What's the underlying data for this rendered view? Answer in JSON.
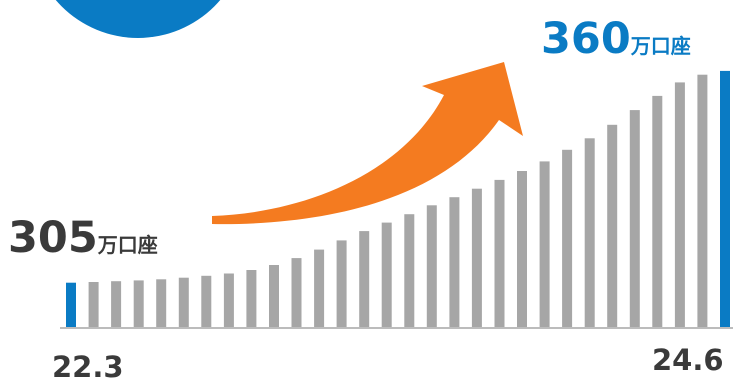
{
  "chart_data": {
    "type": "bar",
    "x_start_label": "22.3",
    "x_end_label": "24.6",
    "start_annotation": {
      "value": "305",
      "unit": "万口座"
    },
    "end_annotation": {
      "value": "360",
      "unit": "万口座"
    },
    "values": [
      305,
      305.2,
      305.4,
      305.6,
      305.9,
      306.3,
      306.8,
      307.4,
      308.3,
      309.6,
      311.4,
      313.6,
      316.0,
      318.4,
      320.6,
      322.8,
      325.1,
      327.2,
      329.4,
      331.7,
      334.0,
      336.5,
      339.5,
      342.5,
      346.0,
      349.8,
      353.5,
      357.0,
      359.0,
      360
    ],
    "highlighted": [
      0,
      29
    ],
    "ylim": [
      300,
      361
    ],
    "colors": {
      "bar": "#a6a6a6",
      "highlight": "#0a7bc4",
      "arrow": "#f47b20",
      "start_label": "#3a3a3a",
      "end_label": "#0a7bc4",
      "axis": "#a6a6a6",
      "circle": "#0a7bc4"
    }
  }
}
